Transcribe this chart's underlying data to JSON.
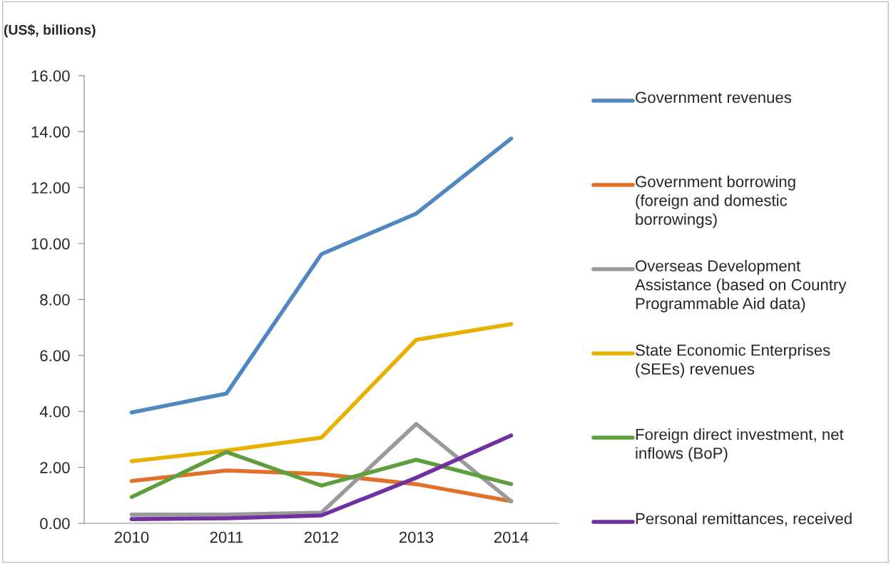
{
  "chart_data": {
    "type": "line",
    "ylabel": "(US$, billions)",
    "categories": [
      "2010",
      "2011",
      "2012",
      "2013",
      "2014"
    ],
    "series": [
      {
        "name": "Government revenues",
        "color": "#4f87c0",
        "values": [
          3.96,
          4.64,
          9.62,
          11.07,
          13.75
        ]
      },
      {
        "name": "Government borrowing\n(foreign and domestic\nborrowings)",
        "color": "#e0702a",
        "values": [
          1.51,
          1.89,
          1.76,
          1.4,
          0.79
        ]
      },
      {
        "name": "Overseas Development\nAssistance (based on Country\nProgrammable Aid data)",
        "color": "#9a9a9a",
        "values": [
          0.31,
          0.31,
          0.38,
          3.55,
          0.79
        ]
      },
      {
        "name": "State Economic Enterprises\n(SEEs) revenues",
        "color": "#e8b000",
        "values": [
          2.22,
          2.6,
          3.06,
          6.56,
          7.12
        ]
      },
      {
        "name": "Foreign direct investment, net\ninflows (BoP)",
        "color": "#5e9e3c",
        "values": [
          0.94,
          2.55,
          1.35,
          2.27,
          1.4
        ]
      },
      {
        "name": "Personal remittances, received",
        "color": "#7030a0",
        "values": [
          0.15,
          0.18,
          0.28,
          1.63,
          3.14
        ]
      }
    ],
    "ylim": [
      0,
      16
    ],
    "yticks": [
      {
        "value": 0,
        "label": "0.00"
      },
      {
        "value": 2,
        "label": "2.00"
      },
      {
        "value": 4,
        "label": "4.00"
      },
      {
        "value": 6,
        "label": "6.00"
      },
      {
        "value": 8,
        "label": "8.00"
      },
      {
        "value": 10,
        "label": "10.00"
      },
      {
        "value": 12,
        "label": "12.00"
      },
      {
        "value": 14,
        "label": "14.00"
      },
      {
        "value": 16,
        "label": "16.00"
      }
    ],
    "grid": false,
    "legend": "right",
    "marker": "none",
    "line_style": "solid"
  }
}
